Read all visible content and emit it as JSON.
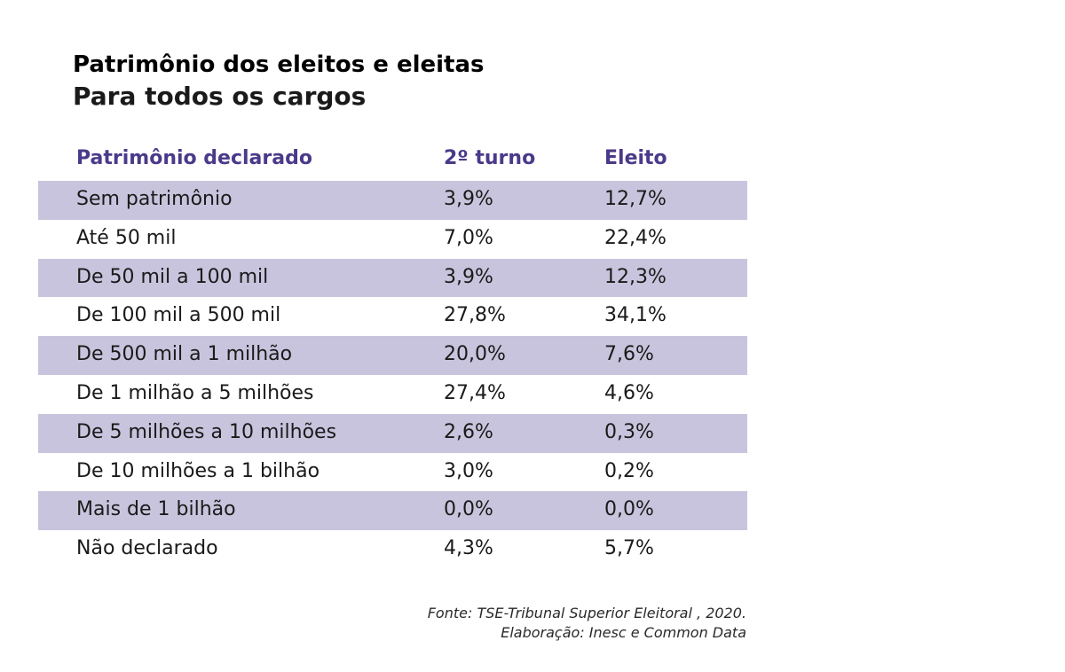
{
  "colors": {
    "header_text": "#4b3a8a",
    "row_shade": "#c9c4dd"
  },
  "chart_data": {
    "type": "table",
    "title": "Patrimônio dos eleitos e eleitas",
    "subtitle": "Para todos os cargos",
    "columns": [
      "Patrimônio declarado",
      "2º turno",
      "Eleito"
    ],
    "rows": [
      [
        "Sem patrimônio",
        "3,9%",
        "12,7%"
      ],
      [
        "Até 50 mil",
        "7,0%",
        "22,4%"
      ],
      [
        "De 50 mil a 100 mil",
        "3,9%",
        "12,3%"
      ],
      [
        "De 100 mil a 500 mil",
        "27,8%",
        "34,1%"
      ],
      [
        "De 500 mil a 1 milhão",
        "20,0%",
        "7,6%"
      ],
      [
        "De 1 milhão a 5 milhões",
        "27,4%",
        "4,6%"
      ],
      [
        "De 5 milhões a 10 milhões",
        "2,6%",
        "0,3%"
      ],
      [
        "De 10 milhões a 1 bilhão",
        "3,0%",
        "0,2%"
      ],
      [
        "Mais de 1 bilhão",
        "0,0%",
        "0,0%"
      ],
      [
        "Não declarado",
        "4,3%",
        "5,7%"
      ]
    ],
    "source_lines": [
      "Fonte: TSE-Tribunal Superior Eleitoral , 2020.",
      "Elaboração: Inesc e Common Data"
    ]
  }
}
